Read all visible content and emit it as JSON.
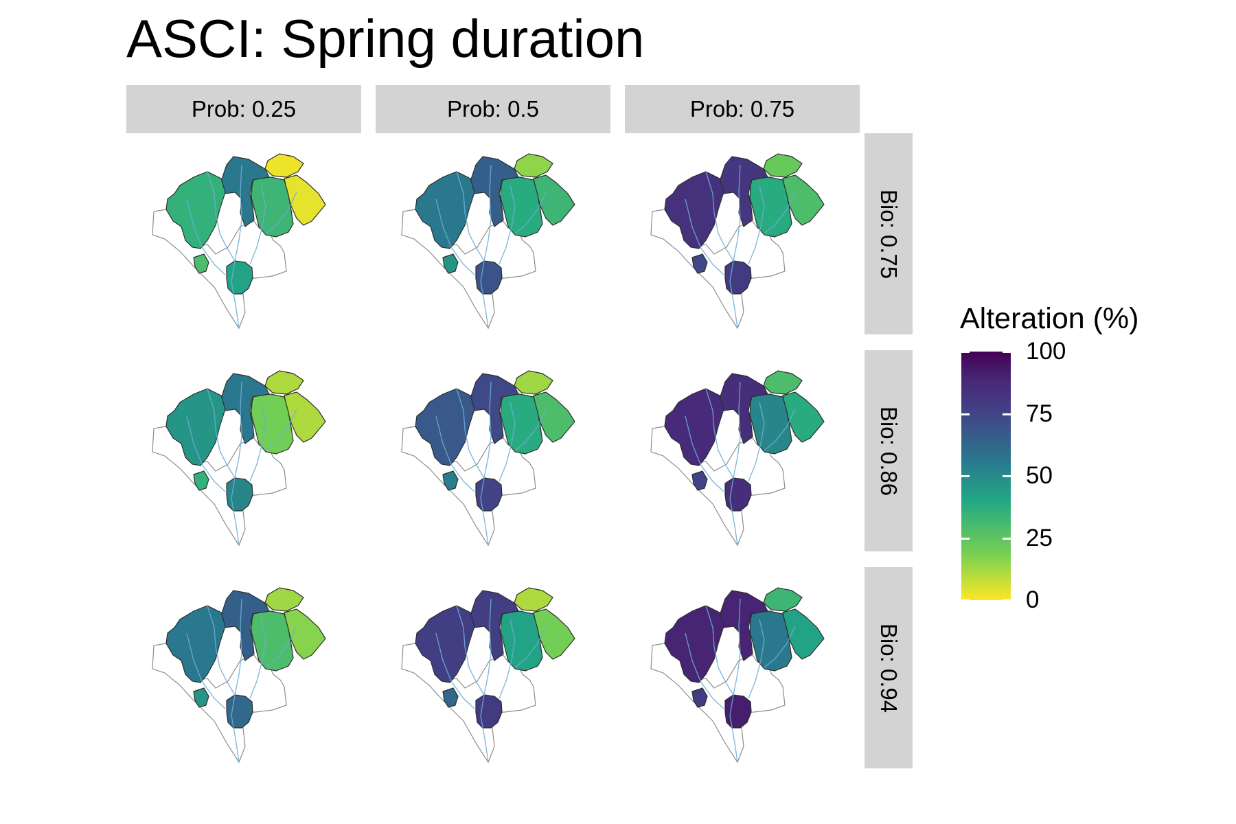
{
  "chart_data": {
    "type": "heatmap",
    "title": "ASCI: Spring duration",
    "facets": {
      "columns": [
        "Prob: 0.25",
        "Prob: 0.5",
        "Prob: 0.75"
      ],
      "rows": [
        "Bio: 0.75",
        "Bio: 0.86",
        "Bio: 0.94"
      ]
    },
    "legend": {
      "title": "Alteration (%)",
      "position": "right",
      "range": [
        0,
        100
      ],
      "ticks": [
        "100",
        "75",
        "50",
        "25",
        "0"
      ],
      "colors": [
        "#fde725",
        "#7ad151",
        "#22a884",
        "#2a788e",
        "#414487",
        "#482878",
        "#440154"
      ]
    },
    "panels": [
      {
        "row": "Bio: 0.75",
        "col": "Prob: 0.25",
        "alteration": {
          "northeast": 2,
          "east": 3,
          "middle_east": 28,
          "central": 50,
          "west": 30,
          "south": 35,
          "minor": 25
        }
      },
      {
        "row": "Bio: 0.75",
        "col": "Prob: 0.5",
        "alteration": {
          "northeast": 14,
          "east": 28,
          "middle_east": 32,
          "central": 58,
          "west": 50,
          "south": 62,
          "minor": 40
        }
      },
      {
        "row": "Bio: 0.75",
        "col": "Prob: 0.75",
        "alteration": {
          "northeast": 20,
          "east": 25,
          "middle_east": 32,
          "central": 75,
          "west": 78,
          "south": 72,
          "minor": 65
        }
      },
      {
        "row": "Bio: 0.86",
        "col": "Prob: 0.25",
        "alteration": {
          "northeast": 10,
          "east": 10,
          "middle_east": 18,
          "central": 50,
          "west": 40,
          "south": 45,
          "minor": 30
        }
      },
      {
        "row": "Bio: 0.86",
        "col": "Prob: 0.5",
        "alteration": {
          "northeast": 12,
          "east": 25,
          "middle_east": 32,
          "central": 65,
          "west": 60,
          "south": 68,
          "minor": 48
        }
      },
      {
        "row": "Bio: 0.86",
        "col": "Prob: 0.75",
        "alteration": {
          "northeast": 25,
          "east": 32,
          "middle_east": 45,
          "central": 80,
          "west": 82,
          "south": 80,
          "minor": 68
        }
      },
      {
        "row": "Bio: 0.94",
        "col": "Prob: 0.25",
        "alteration": {
          "northeast": 12,
          "east": 15,
          "middle_east": 25,
          "central": 58,
          "west": 50,
          "south": 55,
          "minor": 40
        }
      },
      {
        "row": "Bio: 0.94",
        "col": "Prob: 0.5",
        "alteration": {
          "northeast": 10,
          "east": 18,
          "middle_east": 35,
          "central": 70,
          "west": 70,
          "south": 72,
          "minor": 55
        }
      },
      {
        "row": "Bio: 0.94",
        "col": "Prob: 0.75",
        "alteration": {
          "northeast": 28,
          "east": 35,
          "middle_east": 50,
          "central": 85,
          "west": 85,
          "south": 88,
          "minor": 72
        }
      }
    ]
  }
}
